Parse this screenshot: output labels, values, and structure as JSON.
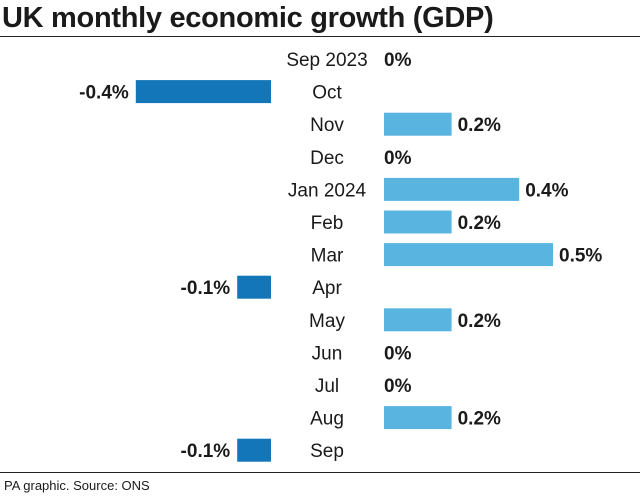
{
  "title": "UK monthly economic growth (GDP)",
  "source": "PA graphic. Source: ONS",
  "colors": {
    "positive": "#5ab4e0",
    "negative": "#1276b8",
    "text": "#1a1a1a"
  },
  "chart_data": {
    "type": "bar",
    "orientation": "horizontal",
    "title": "UK monthly economic growth (GDP)",
    "categories": [
      "Sep 2023",
      "Oct",
      "Nov",
      "Dec",
      "Jan 2024",
      "Feb",
      "Mar",
      "Apr",
      "May",
      "Jun",
      "Jul",
      "Aug",
      "Sep"
    ],
    "values": [
      0,
      -0.4,
      0.2,
      0,
      0.4,
      0.2,
      0.5,
      -0.1,
      0.2,
      0,
      0,
      0.2,
      -0.1
    ],
    "labels": [
      "0%",
      "-0.4%",
      "0.2%",
      "0%",
      "0.4%",
      "0.2%",
      "0.5%",
      "-0.1%",
      "0.2%",
      "0%",
      "0%",
      "0.2%",
      "-0.1%"
    ],
    "unit": "%",
    "grid": false,
    "legend": false
  }
}
